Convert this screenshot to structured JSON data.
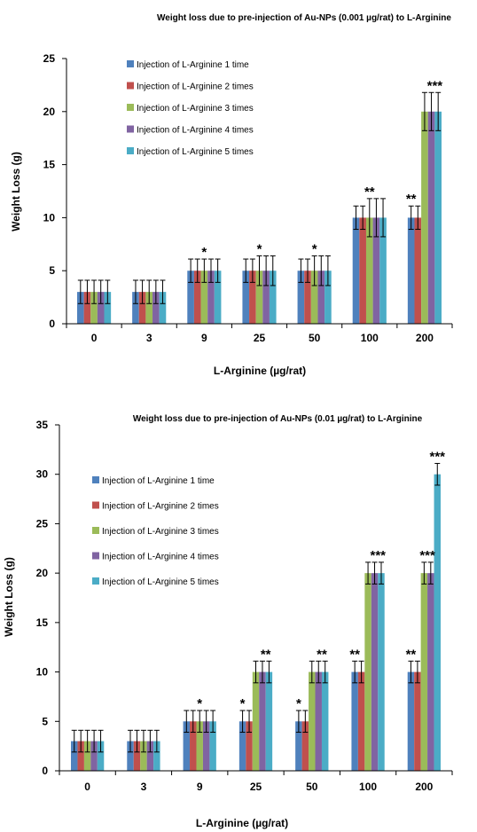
{
  "colors": {
    "series": [
      "#4F81BD",
      "#C0504D",
      "#9BBB59",
      "#8064A2",
      "#4BACC6"
    ],
    "axis": "#000000",
    "error_bar": "#000000"
  },
  "chart_data": [
    {
      "type": "bar",
      "title": "Weight loss due to pre-injection of Au-NPs (0.001 µg/rat) to L-Arginine",
      "xlabel": "L-Arginine (µg/rat)",
      "ylabel": "Weight Loss (g)",
      "ylim": [
        0,
        25
      ],
      "yticks": [
        0,
        5,
        10,
        15,
        20,
        25
      ],
      "categories": [
        "0",
        "3",
        "9",
        "25",
        "50",
        "100",
        "200"
      ],
      "legend_position": "top-left inside",
      "series": [
        {
          "name": "Injection of L-Arginine 1 time",
          "values": [
            3,
            3,
            5,
            5,
            5,
            10,
            10
          ],
          "errors": [
            1.1,
            1.1,
            1.1,
            1.1,
            1.1,
            1.1,
            1.1
          ]
        },
        {
          "name": "Injection of L-Arginine 2 times",
          "values": [
            3,
            3,
            5,
            5,
            5,
            10,
            10
          ],
          "errors": [
            1.1,
            1.1,
            1.1,
            1.1,
            1.1,
            1.1,
            1.1
          ]
        },
        {
          "name": "Injection of L-Arginine 3 times",
          "values": [
            3,
            3,
            5,
            5,
            5,
            10,
            20
          ],
          "errors": [
            1.1,
            1.1,
            1.1,
            1.4,
            1.4,
            1.8,
            1.8
          ]
        },
        {
          "name": "Injection of L-Arginine 4 times",
          "values": [
            3,
            3,
            5,
            5,
            5,
            10,
            20
          ],
          "errors": [
            1.1,
            1.1,
            1.1,
            1.4,
            1.4,
            1.8,
            1.8
          ]
        },
        {
          "name": "Injection of L-Arginine 5 times",
          "values": [
            3,
            3,
            5,
            5,
            5,
            10,
            20
          ],
          "errors": [
            1.1,
            1.1,
            1.1,
            1.4,
            1.4,
            1.8,
            1.8
          ]
        }
      ],
      "annotations": [
        {
          "category": "9",
          "text": "*",
          "over": "center",
          "value": 6.1
        },
        {
          "category": "25",
          "text": "*",
          "over": "center",
          "value": 6.4
        },
        {
          "category": "50",
          "text": "*",
          "over": "center",
          "value": 6.4
        },
        {
          "category": "100",
          "text": "**",
          "over": "center",
          "value": 11.8
        },
        {
          "category": "200",
          "text": "**",
          "over": "first",
          "value": 11.1
        },
        {
          "category": "200",
          "text": "***",
          "over": "last3",
          "value": 21.8
        }
      ]
    },
    {
      "type": "bar",
      "title": "Weight loss due to pre-injection of Au-NPs (0.01 µg/rat) to L-Arginine",
      "xlabel": "L-Arginine (µg/rat)",
      "ylabel": "Weight Loss (g)",
      "ylim": [
        0,
        35
      ],
      "yticks": [
        0,
        5,
        10,
        15,
        20,
        25,
        30,
        35
      ],
      "categories": [
        "0",
        "3",
        "9",
        "25",
        "50",
        "100",
        "200"
      ],
      "legend_position": "left inside",
      "series": [
        {
          "name": "Injection of L-Arginine 1 time",
          "values": [
            3,
            3,
            5,
            5,
            5,
            10,
            10
          ],
          "errors": [
            1.1,
            1.1,
            1.1,
            1.1,
            1.1,
            1.1,
            1.1
          ]
        },
        {
          "name": "Injection of L-Arginine 2 times",
          "values": [
            3,
            3,
            5,
            5,
            5,
            10,
            10
          ],
          "errors": [
            1.1,
            1.1,
            1.1,
            1.1,
            1.1,
            1.1,
            1.1
          ]
        },
        {
          "name": "Injection of L-Arginine 3 times",
          "values": [
            3,
            3,
            5,
            10,
            10,
            20,
            20
          ],
          "errors": [
            1.1,
            1.1,
            1.1,
            1.1,
            1.1,
            1.1,
            1.1
          ]
        },
        {
          "name": "Injection of L-Arginine 4 times",
          "values": [
            3,
            3,
            5,
            10,
            10,
            20,
            20
          ],
          "errors": [
            1.1,
            1.1,
            1.1,
            1.1,
            1.1,
            1.1,
            1.1
          ]
        },
        {
          "name": "Injection of L-Arginine 5 times",
          "values": [
            3,
            3,
            5,
            10,
            10,
            20,
            30
          ],
          "errors": [
            1.1,
            1.1,
            1.1,
            1.1,
            1.1,
            1.1,
            1.1
          ]
        }
      ],
      "annotations": [
        {
          "category": "9",
          "text": "*",
          "over": "center",
          "value": 6.1
        },
        {
          "category": "25",
          "text": "*",
          "over": "first",
          "value": 6.1
        },
        {
          "category": "25",
          "text": "**",
          "over": "last3",
          "value": 11.1
        },
        {
          "category": "50",
          "text": "*",
          "over": "first",
          "value": 6.1
        },
        {
          "category": "50",
          "text": "**",
          "over": "last3",
          "value": 11.1
        },
        {
          "category": "100",
          "text": "**",
          "over": "first",
          "value": 11.1
        },
        {
          "category": "100",
          "text": "***",
          "over": "last3",
          "value": 21.1
        },
        {
          "category": "200",
          "text": "**",
          "over": "first",
          "value": 11.1
        },
        {
          "category": "200",
          "text": "***",
          "over": "g34",
          "value": 21.1
        },
        {
          "category": "200",
          "text": "***",
          "over": "last",
          "value": 31.1
        }
      ]
    }
  ]
}
